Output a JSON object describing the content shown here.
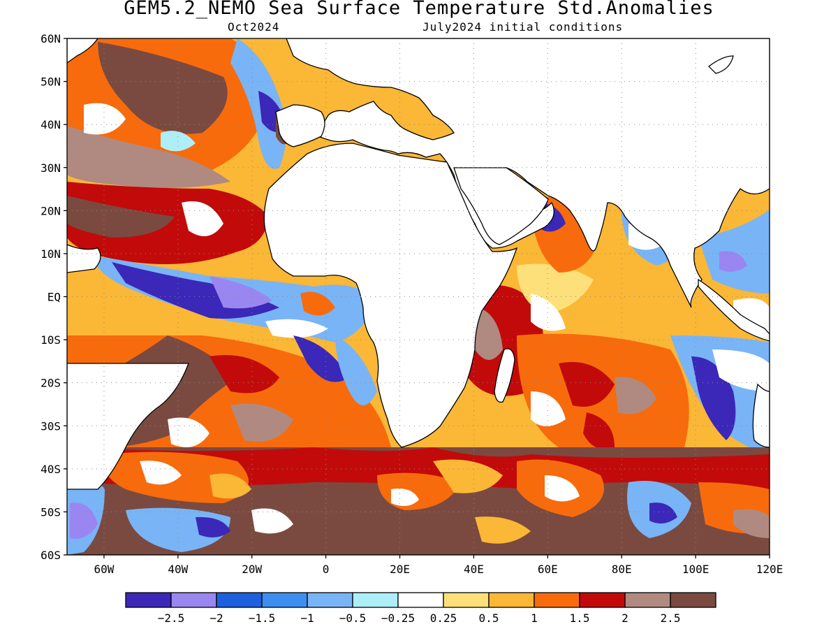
{
  "title": "GEM5.2_NEMO Sea Surface Temperature Std.Anomalies",
  "subtitle_left": "Oct2024",
  "subtitle_right": "July2024 initial conditions",
  "map": {
    "lon_range": [
      -70,
      120
    ],
    "lat_range": [
      -60,
      60
    ],
    "lat_labels": [
      "60N",
      "50N",
      "40N",
      "30N",
      "20N",
      "10N",
      "EQ",
      "10S",
      "20S",
      "30S",
      "40S",
      "50S",
      "60S"
    ],
    "lon_labels": [
      "60W",
      "40W",
      "20W",
      "0",
      "20E",
      "40E",
      "60E",
      "80E",
      "100E",
      "120E"
    ],
    "grid": "dotted"
  },
  "colorbar": {
    "colors": [
      "#3b27b8",
      "#9a86f0",
      "#1e5fe0",
      "#3d8ef0",
      "#79b4f6",
      "#aeeef8",
      "#ffffff",
      "#fde07a",
      "#fbb736",
      "#f76b0c",
      "#c20a0a",
      "#b08a80",
      "#7a4a40"
    ],
    "labels": [
      "-2.5",
      "-2",
      "-1.5",
      "-1",
      "-0.5",
      "-0.25",
      "0.25",
      "0.5",
      "1",
      "1.5",
      "2",
      "2.5"
    ]
  },
  "land_color": "#ffffff",
  "coast_color": "#000000"
}
